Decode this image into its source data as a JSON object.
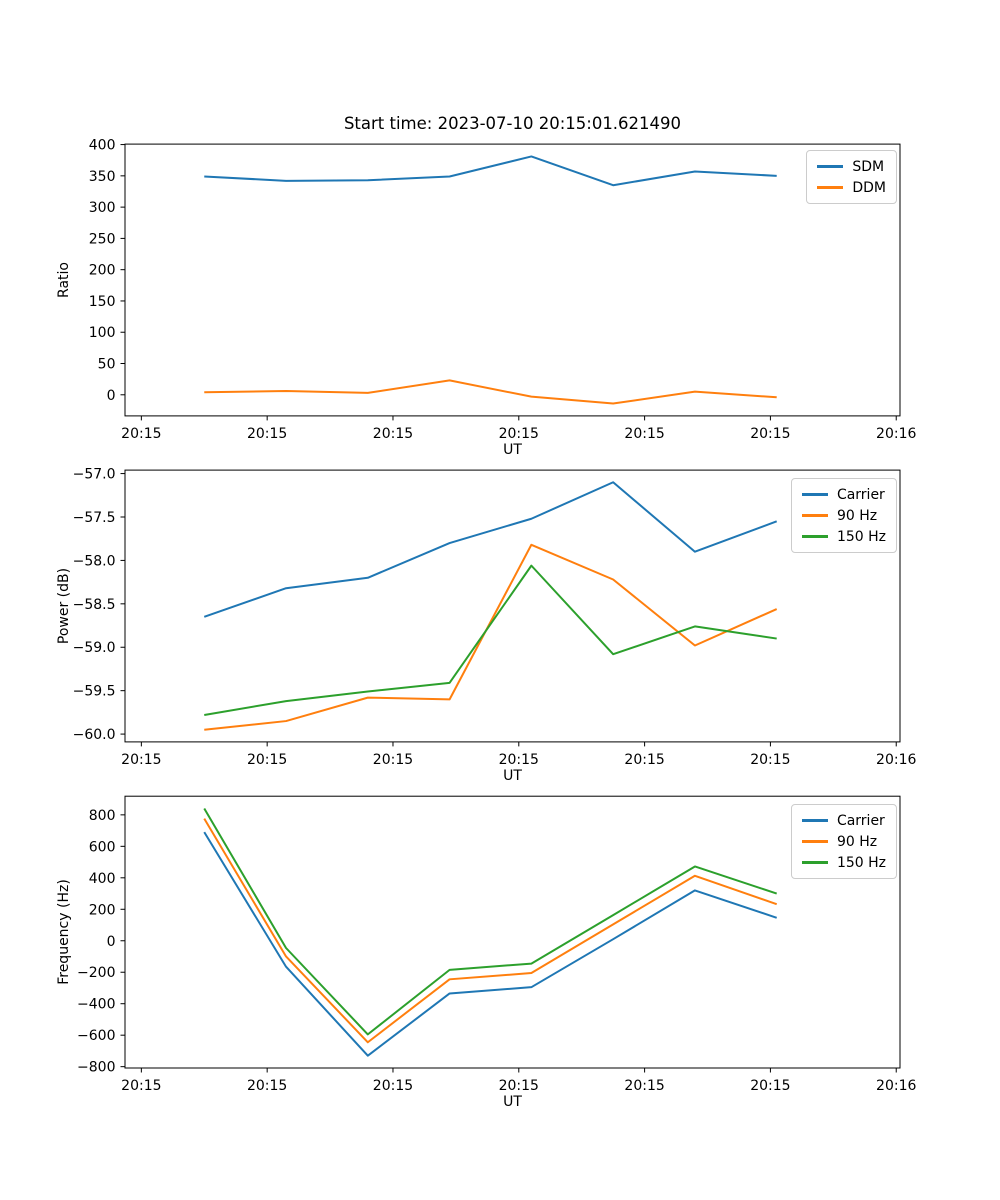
{
  "figure": {
    "title": "Start time: 2023-07-10 20:15:01.621490",
    "background": "#ffffff",
    "text_color": "#000000",
    "spine_color": "#000000"
  },
  "x_axis_note": "x values are seconds after 20:15:00 UT; ticks every 10 s from 20:15 to 20:16",
  "chart_data": [
    {
      "type": "line",
      "ylabel": "Ratio",
      "xlabel": "UT",
      "x_seconds": [
        5,
        11.5,
        18,
        24.5,
        31,
        37.5,
        44,
        50.5
      ],
      "xlim_seconds": [
        -1.3,
        60.3
      ],
      "xtick_seconds": [
        0,
        10,
        20,
        30,
        40,
        50,
        60
      ],
      "xtick_labels": [
        "20:15",
        "20:15",
        "20:15",
        "20:15",
        "20:15",
        "20:15",
        "20:16"
      ],
      "ylim": [
        -33.75,
        400.75
      ],
      "yticks": [
        0,
        50,
        100,
        150,
        200,
        250,
        300,
        350,
        400
      ],
      "ytick_labels": [
        "0",
        "50",
        "100",
        "150",
        "200",
        "250",
        "300",
        "350",
        "400"
      ],
      "grid": false,
      "legend_position": "upper right",
      "series": [
        {
          "name": "SDM",
          "color": "#1f77b4",
          "values": [
            349,
            342,
            343,
            349,
            381,
            335,
            357,
            350
          ]
        },
        {
          "name": "DDM",
          "color": "#ff7f0e",
          "values": [
            4,
            6,
            3,
            23,
            -3,
            -14,
            5,
            -4
          ]
        }
      ]
    },
    {
      "type": "line",
      "ylabel": "Power (dB)",
      "xlabel": "UT",
      "x_seconds": [
        5,
        11.5,
        18,
        24.5,
        31,
        37.5,
        44,
        50.5
      ],
      "xlim_seconds": [
        -1.3,
        60.3
      ],
      "xtick_seconds": [
        0,
        10,
        20,
        30,
        40,
        50,
        60
      ],
      "xtick_labels": [
        "20:15",
        "20:15",
        "20:15",
        "20:15",
        "20:15",
        "20:15",
        "20:16"
      ],
      "ylim": [
        -60.09,
        -56.96
      ],
      "yticks": [
        -57.0,
        -57.5,
        -58.0,
        -58.5,
        -59.0,
        -59.5,
        -60.0
      ],
      "ytick_labels": [
        "−57.0",
        "−57.5",
        "−58.0",
        "−58.5",
        "−59.0",
        "−59.5",
        "−60.0"
      ],
      "grid": false,
      "legend_position": "upper right",
      "series": [
        {
          "name": "Carrier",
          "color": "#1f77b4",
          "values": [
            -58.65,
            -58.32,
            -58.2,
            -57.8,
            -57.52,
            -57.1,
            -57.9,
            -57.55
          ]
        },
        {
          "name": "90 Hz",
          "color": "#ff7f0e",
          "values": [
            -59.95,
            -59.85,
            -59.58,
            -59.6,
            -57.82,
            -58.22,
            -58.98,
            -58.56
          ]
        },
        {
          "name": "150 Hz",
          "color": "#2ca02c",
          "values": [
            -59.78,
            -59.62,
            -59.51,
            -59.41,
            -58.06,
            -59.08,
            -58.76,
            -58.9
          ]
        }
      ]
    },
    {
      "type": "line",
      "ylabel": "Frequency (Hz)",
      "xlabel": "UT",
      "x_seconds": [
        5,
        11.5,
        18,
        24.5,
        31,
        37.5,
        44,
        50.5
      ],
      "xlim_seconds": [
        -1.3,
        60.3
      ],
      "xtick_seconds": [
        0,
        10,
        20,
        30,
        40,
        50,
        60
      ],
      "xtick_labels": [
        "20:15",
        "20:15",
        "20:15",
        "20:15",
        "20:15",
        "20:15",
        "20:16"
      ],
      "ylim": [
        -808.5,
        918.5
      ],
      "yticks": [
        800,
        600,
        400,
        200,
        0,
        -200,
        -400,
        -600,
        -800
      ],
      "ytick_labels": [
        "800",
        "600",
        "400",
        "200",
        "0",
        "−200",
        "−400",
        "−600",
        "−800"
      ],
      "grid": false,
      "legend_position": "upper right",
      "series": [
        {
          "name": "Carrier",
          "color": "#1f77b4",
          "values": [
            690,
            -165,
            -730,
            -335,
            -295,
            10,
            320,
            146
          ]
        },
        {
          "name": "90 Hz",
          "color": "#ff7f0e",
          "values": [
            776,
            -100,
            -645,
            -245,
            -205,
            104,
            413,
            232
          ]
        },
        {
          "name": "150 Hz",
          "color": "#2ca02c",
          "values": [
            840,
            -46,
            -595,
            -185,
            -145,
            163,
            472,
            300
          ]
        }
      ]
    }
  ]
}
